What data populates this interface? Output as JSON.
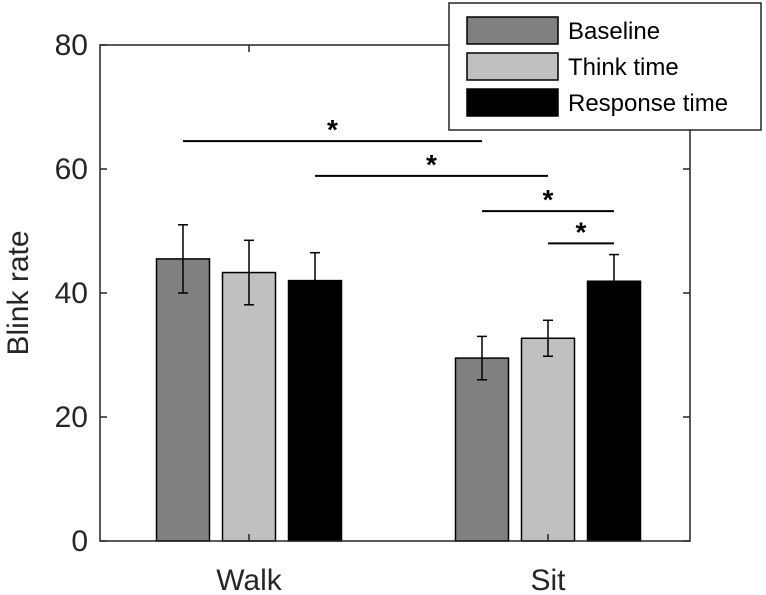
{
  "chart_data": {
    "type": "bar",
    "title": "",
    "xlabel": "",
    "ylabel": "Blink rate",
    "ylim": [
      0,
      80
    ],
    "yticks": [
      0,
      20,
      40,
      60,
      80
    ],
    "grid": false,
    "legend_position": "top-right",
    "categories": [
      "Walk",
      "Sit"
    ],
    "series": [
      {
        "name": "Baseline",
        "color": "#808080",
        "values": [
          45.5,
          29.5
        ],
        "errors": [
          5.5,
          3.5
        ]
      },
      {
        "name": "Think time",
        "color": "#c0c0c0",
        "values": [
          43.3,
          32.7
        ],
        "errors": [
          5.2,
          2.9
        ]
      },
      {
        "name": "Response time",
        "color": "#000000",
        "values": [
          42.0,
          41.9
        ],
        "errors": [
          4.5,
          4.3
        ]
      }
    ],
    "significance": [
      {
        "label": "*",
        "from": {
          "category": "Walk",
          "series": "Baseline"
        },
        "to": {
          "category": "Sit",
          "series": "Baseline"
        },
        "y": 64.5
      },
      {
        "label": "*",
        "from": {
          "category": "Walk",
          "series": "Response time"
        },
        "to": {
          "category": "Sit",
          "series": "Think time"
        },
        "y": 58.9
      },
      {
        "label": "*",
        "from": {
          "category": "Sit",
          "series": "Baseline"
        },
        "to": {
          "category": "Sit",
          "series": "Response time"
        },
        "y": 53.2
      },
      {
        "label": "*",
        "from": {
          "category": "Sit",
          "series": "Think time"
        },
        "to": {
          "category": "Sit",
          "series": "Response time"
        },
        "y": 48.0
      }
    ]
  }
}
